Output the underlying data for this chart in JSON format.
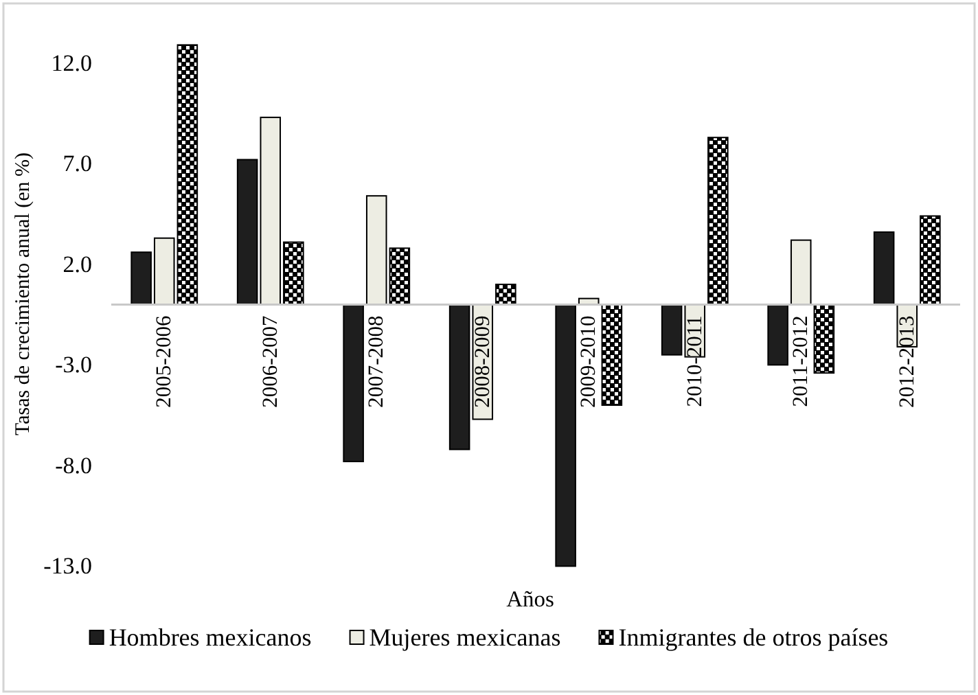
{
  "chart_data": {
    "type": "bar",
    "xlabel": "Años",
    "ylabel": "Tasas de crecimiento anual (en %)",
    "categories": [
      "2005-2006",
      "2006-2007",
      "2007-2008",
      "2008-2009",
      "2009-2010",
      "2010-2011",
      "2011-2012",
      "2012-2013"
    ],
    "series": [
      {
        "name": "Hombres mexicanos",
        "color": "#1e1e1e",
        "values": [
          2.6,
          7.2,
          -7.8,
          -7.2,
          -13.0,
          -2.5,
          -3.0,
          3.6
        ]
      },
      {
        "name": "Mujeres mexicanas",
        "color": "#edede3",
        "values": [
          3.3,
          9.3,
          5.4,
          -5.7,
          0.3,
          -2.6,
          3.2,
          -2.1
        ]
      },
      {
        "name": "Inmigrantes de otros países",
        "color": "#000000",
        "values": [
          12.9,
          3.1,
          2.8,
          1.0,
          -5.0,
          8.3,
          -3.4,
          4.4
        ]
      }
    ],
    "ylim": [
      -13,
      12.9
    ],
    "yticks": [
      {
        "value": 12,
        "label": "12.0"
      },
      {
        "value": 7,
        "label": "7.0"
      },
      {
        "value": 2,
        "label": "2.0"
      },
      {
        "value": -3,
        "label": "-3.0"
      },
      {
        "value": -8,
        "label": "-8.0"
      },
      {
        "value": -13,
        "label": "-13.0"
      }
    ],
    "legend": "bottom"
  }
}
